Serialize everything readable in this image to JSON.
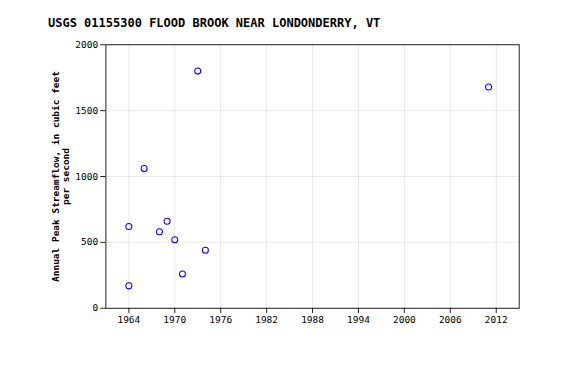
{
  "chart_data": {
    "type": "scatter",
    "title": "USGS 01155300 FLOOD BROOK NEAR LONDONDERRY, VT",
    "ylabel": "Annual Peak Streamflow, in cubic feet\nper second",
    "x": [
      1964,
      1964,
      1966,
      1968,
      1969,
      1970,
      1971,
      1973,
      1974,
      2011
    ],
    "values": [
      620,
      170,
      1060,
      580,
      660,
      520,
      260,
      1800,
      440,
      1680
    ],
    "color": "blue",
    "marker": "circle",
    "xlim": [
      1961,
      2015
    ],
    "ylim": [
      0,
      2000
    ],
    "xticks": [
      1964,
      1970,
      1976,
      1982,
      1988,
      1994,
      2000,
      2006,
      2012
    ],
    "yticks": [
      0,
      500,
      1000,
      1500,
      2000
    ],
    "grid": true
  }
}
